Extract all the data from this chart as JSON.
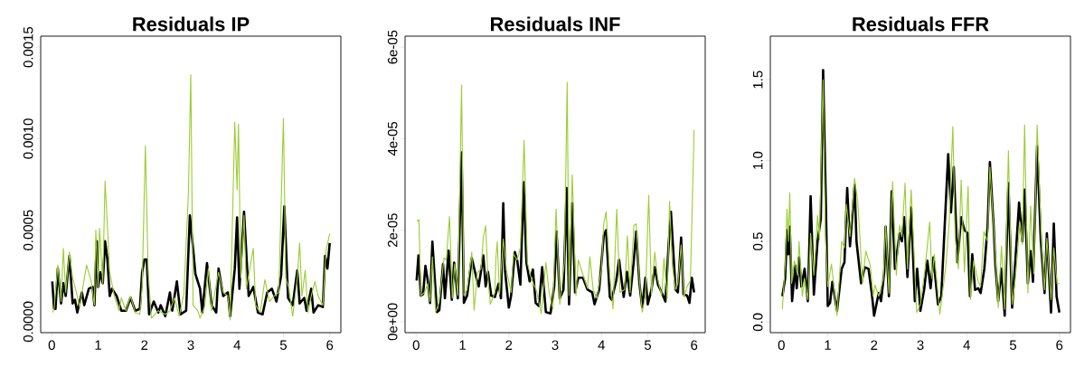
{
  "chart_data": [
    {
      "type": "line",
      "title": "Residuals IP",
      "xlim": [
        -0.24,
        6.24
      ],
      "ylim": [
        -6e-05,
        0.00156
      ],
      "xticks": [
        0,
        1,
        2,
        3,
        4,
        5,
        6
      ],
      "yticks": [
        {
          "value": 0,
          "label": "0.0000"
        },
        {
          "value": 0.0005,
          "label": "0.0005"
        },
        {
          "value": 0.001,
          "label": "0.0010"
        },
        {
          "value": 0.0015,
          "label": "0.0015"
        }
      ],
      "series": [
        {
          "color": "#000000",
          "x": [
            0.01,
            0.05,
            0.08,
            0.13,
            0.2,
            0.25,
            0.3,
            0.38,
            0.45,
            0.5,
            0.55,
            0.65,
            0.7,
            0.8,
            0.88,
            0.92,
            0.97,
            1.0,
            1.05,
            1.1,
            1.15,
            1.2,
            1.25,
            1.3,
            1.4,
            1.5,
            1.6,
            1.7,
            1.8,
            1.9,
            1.95,
            2.0,
            2.05,
            2.1,
            2.2,
            2.3,
            2.35,
            2.45,
            2.55,
            2.6,
            2.7,
            2.78,
            2.9,
            2.98,
            3.05,
            3.1,
            3.2,
            3.25,
            3.35,
            3.45,
            3.55,
            3.6,
            3.7,
            3.8,
            3.85,
            3.95,
            4.0,
            4.05,
            4.15,
            4.25,
            4.35,
            4.45,
            4.55,
            4.65,
            4.75,
            4.85,
            4.95,
            5.02,
            5.1,
            5.2,
            5.3,
            5.35,
            5.45,
            5.5,
            5.6,
            5.65,
            5.75,
            5.85,
            5.9,
            5.95,
            6.0
          ],
          "values": [
            0.00022,
            7e-05,
            7e-05,
            0.00029,
            0.0001,
            0.00021,
            0.00014,
            0.00036,
            0.0001,
            0.00012,
            5e-05,
            0.00016,
            9e-05,
            0.00018,
            0.00019,
            9e-05,
            0.00044,
            0.00019,
            0.00027,
            0.00021,
            0.00044,
            0.00034,
            0.00014,
            0.00018,
            0.00014,
            6e-05,
            6e-05,
            0.00013,
            6e-05,
            7e-05,
            0.00027,
            0.00034,
            0.00034,
            4e-05,
            0.00011,
            5e-05,
            9e-05,
            3e-05,
            0.00016,
            6e-05,
            0.00022,
            4e-05,
            6e-05,
            0.00058,
            0.0004,
            0.00026,
            0.00018,
            5e-05,
            0.00032,
            9e-05,
            5e-05,
            0.00029,
            0.00014,
            0.00016,
            3e-05,
            0.00029,
            0.00057,
            0.00018,
            0.0006,
            0.00014,
            0.00019,
            5e-05,
            4e-05,
            0.00016,
            0.00018,
            0.00011,
            0.00025,
            0.00063,
            0.00013,
            9e-05,
            0.00028,
            0.0001,
            0.00013,
            6e-05,
            0.00018,
            5e-05,
            9e-05,
            8e-05,
            0.00036,
            0.00029,
            0.00043
          ]
        },
        {
          "color": "#9acd32",
          "x": [
            0.01,
            0.05,
            0.13,
            0.2,
            0.25,
            0.3,
            0.38,
            0.45,
            0.55,
            0.6,
            0.75,
            0.85,
            0.92,
            0.95,
            1.0,
            1.03,
            1.1,
            1.15,
            1.25,
            1.35,
            1.45,
            1.5,
            1.6,
            1.7,
            1.8,
            1.9,
            1.95,
            2.02,
            2.08,
            2.15,
            2.3,
            2.45,
            2.55,
            2.65,
            2.75,
            2.85,
            2.95,
            3.0,
            3.05,
            3.15,
            3.2,
            3.3,
            3.38,
            3.45,
            3.6,
            3.7,
            3.8,
            3.85,
            3.95,
            4.0,
            4.03,
            4.08,
            4.15,
            4.2,
            4.35,
            4.4,
            4.5,
            4.6,
            4.7,
            4.8,
            4.9,
            5.0,
            5.05,
            5.12,
            5.2,
            5.3,
            5.35,
            5.4,
            5.47,
            5.53,
            5.6,
            5.68,
            5.75,
            5.85,
            5.92,
            6.0
          ],
          "values": [
            5e-05,
            7e-05,
            0.00031,
            0.00011,
            0.0004,
            0.00016,
            0.00038,
            0.00024,
            0.00014,
            8e-05,
            0.00031,
            0.00022,
            9e-05,
            0.0005,
            0.00019,
            0.00051,
            0.00021,
            0.00077,
            0.00027,
            0.00014,
            6e-05,
            0.00013,
            6e-05,
            0.00014,
            5e-05,
            4e-05,
            0.00019,
            0.00096,
            0.00027,
            2e-05,
            6e-05,
            4e-05,
            6e-05,
            0.00013,
            3e-05,
            0.00015,
            0.00071,
            0.00135,
            9e-05,
            6e-05,
            2e-05,
            8e-05,
            0.00029,
            6e-05,
            0.00027,
            0.00016,
            0.00014,
            1e-05,
            0.00109,
            0.00072,
            0.00108,
            0.00024,
            0.00058,
            0.00018,
            0.0004,
            9e-05,
            5e-05,
            0.00023,
            0.00011,
            0.00014,
            0.00016,
            0.00111,
            0.00024,
            0.00018,
            3e-05,
            0.00024,
            0.00043,
            0.00014,
            0.00028,
            5e-05,
            0.00014,
            0.00022,
            0.00014,
            9e-05,
            0.00039,
            0.00048
          ]
        }
      ]
    },
    {
      "type": "line",
      "title": "Residuals INF",
      "xlim": [
        -0.24,
        6.24
      ],
      "ylim": [
        -2.4e-06,
        6.24e-05
      ],
      "xticks": [
        0,
        1,
        2,
        3,
        4,
        5,
        6
      ],
      "yticks": [
        {
          "value": 0,
          "label": "0e+00"
        },
        {
          "value": 2e-05,
          "label": "2e-05"
        },
        {
          "value": 4e-05,
          "label": "4e-05"
        },
        {
          "value": 6e-05,
          "label": "6e-05"
        }
      ],
      "series": [
        {
          "color": "#000000",
          "x": [
            0.01,
            0.05,
            0.1,
            0.15,
            0.2,
            0.25,
            0.3,
            0.35,
            0.4,
            0.45,
            0.5,
            0.58,
            0.62,
            0.7,
            0.77,
            0.82,
            0.9,
            0.98,
            1.03,
            1.1,
            1.2,
            1.3,
            1.35,
            1.45,
            1.5,
            1.55,
            1.62,
            1.7,
            1.78,
            1.83,
            1.88,
            1.92,
            2.0,
            2.05,
            2.13,
            2.18,
            2.25,
            2.32,
            2.38,
            2.45,
            2.52,
            2.58,
            2.65,
            2.72,
            2.8,
            2.9,
            2.98,
            3.03,
            3.1,
            3.18,
            3.25,
            3.3,
            3.37,
            3.43,
            3.5,
            3.6,
            3.7,
            3.8,
            3.85,
            3.95,
            4.05,
            4.1,
            4.18,
            4.22,
            4.32,
            4.38,
            4.48,
            4.55,
            4.62,
            4.7,
            4.75,
            4.82,
            4.88,
            4.95,
            5.0,
            5.08,
            5.15,
            5.22,
            5.3,
            5.38,
            5.45,
            5.5,
            5.6,
            5.65,
            5.72,
            5.77,
            5.85,
            5.9,
            5.95,
            6.0
          ],
          "values": [
            9e-06,
            1.45e-05,
            5.7e-06,
            6e-06,
            1.22e-05,
            9e-06,
            4.1e-06,
            1.75e-05,
            9.6e-06,
            2.1e-06,
            2.5e-06,
            1.26e-05,
            5.1e-06,
            1.55e-05,
            4.8e-06,
            1.29e-05,
            5.1e-06,
            3.7e-05,
            4.1e-06,
            5.7e-06,
            1.39e-05,
            9.6e-06,
            7.7e-06,
            1.45e-05,
            7.7e-06,
            1.09e-05,
            5.7e-06,
            5.4e-06,
            8.3e-06,
            5.1e-06,
            2.59e-05,
            1.09e-05,
            3.1e-06,
            5.7e-06,
            1.52e-05,
            1.35e-05,
            8.1e-06,
            3.05e-05,
            1.29e-05,
            8.8e-06,
            1.14e-05,
            4.1e-06,
            3.4e-06,
            1.19e-05,
            2.1e-06,
            1.8e-06,
            7.7e-06,
            1.97e-05,
            5.1e-06,
            7e-06,
            2.92e-05,
            3.8e-06,
            2.59e-05,
            6.4e-06,
            9.6e-06,
            9.6e-06,
            7e-06,
            6.4e-06,
            3.8e-06,
            7e-06,
            1.88e-05,
            2e-05,
            5.4e-06,
            4.8e-06,
            9e-06,
            1.35e-05,
            5.4e-06,
            1.09e-05,
            5.7e-06,
            1.35e-05,
            1.97e-05,
            8.3e-06,
            3.1e-06,
            9.6e-06,
            3.8e-06,
            7e-06,
            1.19e-05,
            8.1e-06,
            6.4e-06,
            4.4e-06,
            1.68e-05,
            2.4e-05,
            7e-06,
            6.4e-06,
            1.84e-05,
            6e-06,
            5.7e-06,
            4.1e-06,
            9.6e-06,
            6.4e-06
          ]
        },
        {
          "color": "#9acd32",
          "x": [
            0.02,
            0.06,
            0.1,
            0.18,
            0.25,
            0.3,
            0.35,
            0.42,
            0.5,
            0.6,
            0.65,
            0.72,
            0.78,
            0.83,
            0.9,
            0.98,
            1.03,
            1.1,
            1.2,
            1.25,
            1.32,
            1.4,
            1.45,
            1.5,
            1.55,
            1.6,
            1.7,
            1.72,
            1.75,
            1.8,
            1.88,
            1.95,
            2.05,
            2.1,
            2.18,
            2.25,
            2.33,
            2.4,
            2.48,
            2.6,
            2.65,
            2.7,
            2.8,
            2.87,
            2.95,
            3.02,
            3.1,
            3.2,
            3.26,
            3.3,
            3.37,
            3.45,
            3.5,
            3.6,
            3.7,
            3.75,
            3.82,
            3.9,
            4.0,
            4.05,
            4.1,
            4.18,
            4.25,
            4.33,
            4.4,
            4.5,
            4.56,
            4.62,
            4.7,
            4.75,
            4.82,
            4.88,
            4.95,
            5.02,
            5.08,
            5.15,
            5.22,
            5.3,
            5.35,
            5.42,
            5.47,
            5.53,
            5.6,
            5.65,
            5.72,
            5.78,
            5.85,
            5.92,
            6.0
          ],
          "values": [
            2.2e-05,
            2.23e-05,
            5.7e-06,
            6.4e-06,
            8.3e-06,
            4.4e-06,
            1.42e-05,
            2.1e-06,
            4.4e-06,
            1.39e-05,
            1.35e-05,
            2.3e-05,
            5.1e-06,
            1.26e-05,
            5.7e-06,
            5.17e-05,
            5.7e-06,
            7e-06,
            1.52e-05,
            2.5e-06,
            1.06e-05,
            1.16e-05,
            1.84e-05,
            2.1e-05,
            9.6e-06,
            3.8e-06,
            6.4e-06,
            1.35e-05,
            1.75e-05,
            6e-06,
            1.81e-05,
            1.12e-05,
            6.4e-06,
            1.48e-05,
            1.35e-05,
            1.62e-05,
            3.96e-05,
            1.29e-05,
            9.6e-06,
            6.7e-06,
            4.1e-06,
            1.8e-06,
            1.29e-05,
            6.4e-06,
            2.8e-06,
            2.46e-05,
            3.8e-06,
            1.29e-05,
            5.23e-05,
            5.7e-06,
            3.21e-05,
            5.7e-06,
            1.35e-05,
            1.03e-05,
            7.3e-06,
            1.42e-05,
            7e-06,
            5.1e-06,
            1.16e-05,
            2.14e-05,
            2.4e-05,
            1e-05,
            2.8e-06,
            2.46e-05,
            6.4e-06,
            7e-06,
            1.88e-05,
            6.4e-06,
            2.1e-05,
            2.14e-05,
            9e-06,
            2.1e-06,
            5.7e-06,
            2.76e-05,
            5.7e-06,
            1.52e-05,
            9e-06,
            5.7e-06,
            1.39e-05,
            5.1e-06,
            2.63e-05,
            1.22e-05,
            7e-06,
            8.3e-06,
            1.68e-05,
            5.4e-06,
            7.7e-06,
            9e-06,
            4.19e-05
          ]
        }
      ]
    },
    {
      "type": "line",
      "title": "Residuals FFR",
      "xlim": [
        -0.24,
        6.24
      ],
      "ylim": [
        -0.065,
        1.77
      ],
      "xticks": [
        0,
        1,
        2,
        3,
        4,
        5,
        6
      ],
      "yticks": [
        {
          "value": 0,
          "label": "0.0"
        },
        {
          "value": 0.5,
          "label": "0.5"
        },
        {
          "value": 1,
          "label": "1.0"
        },
        {
          "value": 1.5,
          "label": "1.5"
        }
      ],
      "series": [
        {
          "color": "#000000",
          "x": [
            0.02,
            0.08,
            0.12,
            0.15,
            0.18,
            0.23,
            0.3,
            0.33,
            0.38,
            0.43,
            0.5,
            0.57,
            0.63,
            0.7,
            0.78,
            0.85,
            0.9,
            0.95,
            1.0,
            1.05,
            1.1,
            1.2,
            1.3,
            1.36,
            1.42,
            1.48,
            1.58,
            1.62,
            1.72,
            1.8,
            1.88,
            1.95,
            2.0,
            2.1,
            2.15,
            2.22,
            2.25,
            2.32,
            2.38,
            2.45,
            2.55,
            2.6,
            2.65,
            2.72,
            2.8,
            2.88,
            2.93,
            3.0,
            3.08,
            3.15,
            3.22,
            3.28,
            3.38,
            3.45,
            3.6,
            3.66,
            3.72,
            3.8,
            3.88,
            3.95,
            4.02,
            4.07,
            4.12,
            4.18,
            4.25,
            4.3,
            4.38,
            4.45,
            4.5,
            4.58,
            4.62,
            4.68,
            4.75,
            4.82,
            4.9,
            4.98,
            5.05,
            5.13,
            5.2,
            5.25,
            5.32,
            5.38,
            5.43,
            5.52,
            5.6,
            5.68,
            5.73,
            5.82,
            5.88,
            5.94,
            6.0
          ],
          "values": [
            0.16,
            0.27,
            0.57,
            0.42,
            0.59,
            0.13,
            0.35,
            0.21,
            0.4,
            0.22,
            0.33,
            0.13,
            0.78,
            0.17,
            0.5,
            0.64,
            1.56,
            0.86,
            0.1,
            0.12,
            0.25,
            0.07,
            0.33,
            0.37,
            0.83,
            0.47,
            0.85,
            0.5,
            0.24,
            0.34,
            0.33,
            0.18,
            0.04,
            0.18,
            0.13,
            0.31,
            0.59,
            0.16,
            0.81,
            0.33,
            0.55,
            0.5,
            0.65,
            0.28,
            0.71,
            0.13,
            0.33,
            0.07,
            0.2,
            0.38,
            0.21,
            0.4,
            0.11,
            0.16,
            1.04,
            0.68,
            0.96,
            0.37,
            0.65,
            0.57,
            0.55,
            0.16,
            0.42,
            0.2,
            0.21,
            0.18,
            0.33,
            0.59,
            0.99,
            0.6,
            0.35,
            0.13,
            0.33,
            0.04,
            0.86,
            0.09,
            0.38,
            0.74,
            0.5,
            0.82,
            0.24,
            0.44,
            0.25,
            1.09,
            0.5,
            0.18,
            0.55,
            0.06,
            0.61,
            0.16,
            0.06
          ]
        },
        {
          "color": "#9acd32",
          "x": [
            0.02,
            0.08,
            0.12,
            0.15,
            0.18,
            0.22,
            0.28,
            0.35,
            0.38,
            0.45,
            0.5,
            0.57,
            0.63,
            0.7,
            0.78,
            0.82,
            0.88,
            0.9,
            0.95,
            1.0,
            1.08,
            1.2,
            1.3,
            1.36,
            1.4,
            1.48,
            1.58,
            1.65,
            1.75,
            1.82,
            1.92,
            1.98,
            2.02,
            2.1,
            2.2,
            2.25,
            2.32,
            2.4,
            2.48,
            2.55,
            2.6,
            2.67,
            2.72,
            2.8,
            2.92,
            3.0,
            3.1,
            3.2,
            3.25,
            3.3,
            3.42,
            3.55,
            3.62,
            3.7,
            3.75,
            3.82,
            3.88,
            3.95,
            4.03,
            4.08,
            4.15,
            4.25,
            4.3,
            4.37,
            4.45,
            4.5,
            4.6,
            4.68,
            4.75,
            4.82,
            4.9,
            4.98,
            5.05,
            5.15,
            5.2,
            5.25,
            5.32,
            5.38,
            5.45,
            5.52,
            5.62,
            5.68,
            5.73,
            5.82,
            5.88,
            5.95,
            6.0
          ],
          "values": [
            0.08,
            0.35,
            0.7,
            0.5,
            0.8,
            0.24,
            0.38,
            0.29,
            0.5,
            0.16,
            0.27,
            0.14,
            0.55,
            0.29,
            0.66,
            0.51,
            1.27,
            1.5,
            0.53,
            0.22,
            0.36,
            0.04,
            0.5,
            0.46,
            0.73,
            0.53,
            0.89,
            0.74,
            0.24,
            0.44,
            0.35,
            0.16,
            0.23,
            0.16,
            0.27,
            0.6,
            0.18,
            0.87,
            0.29,
            0.6,
            0.53,
            0.86,
            0.33,
            0.82,
            0.06,
            0.11,
            0.33,
            0.62,
            0.27,
            0.42,
            0.05,
            0.35,
            0.61,
            1.21,
            0.53,
            0.33,
            0.88,
            0.31,
            0.84,
            0.14,
            0.38,
            0.25,
            0.22,
            0.56,
            0.5,
            0.96,
            0.5,
            0.09,
            0.47,
            0.08,
            1.06,
            0.11,
            0.27,
            0.62,
            0.48,
            1.22,
            0.18,
            0.72,
            0.3,
            1.22,
            0.46,
            0.2,
            0.52,
            0.14,
            0.46,
            0.24,
            0.24
          ]
        }
      ]
    }
  ]
}
